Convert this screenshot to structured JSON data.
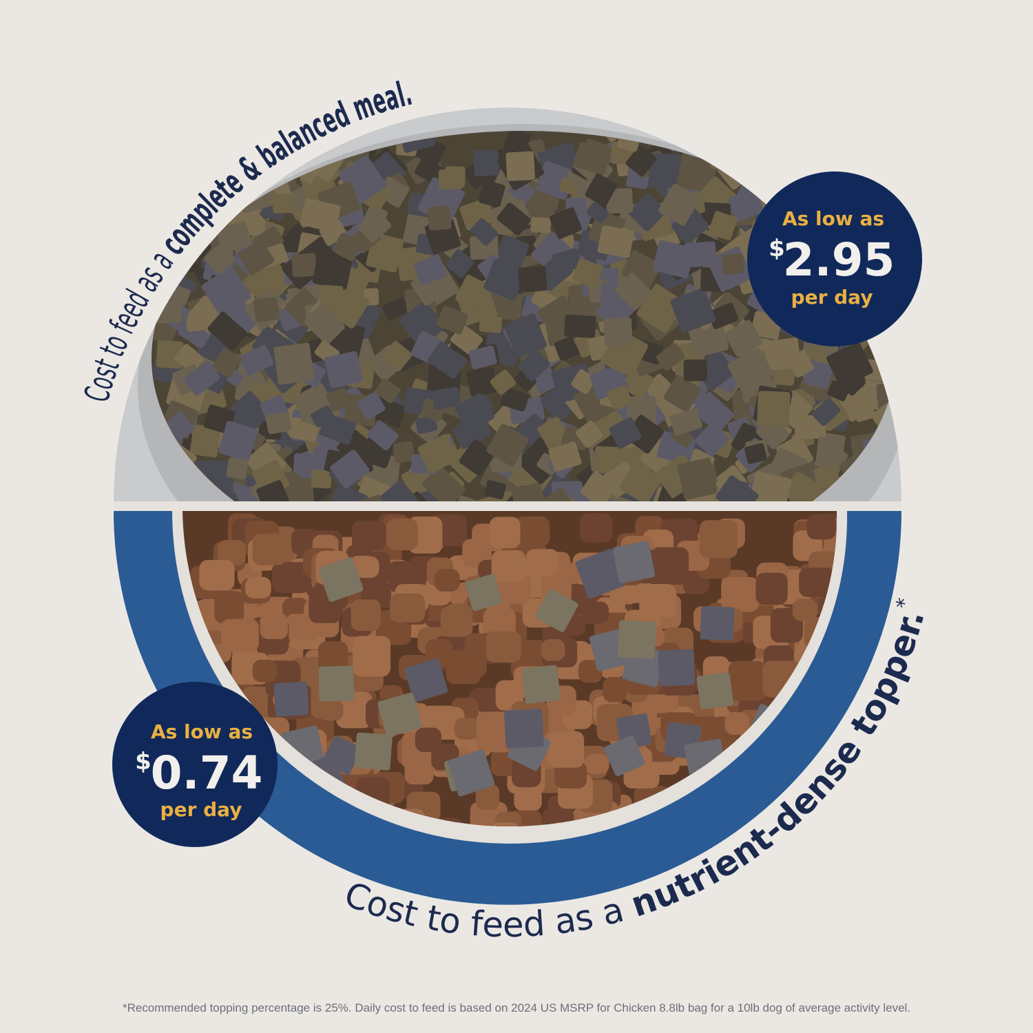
{
  "top_caption": {
    "regular": "Cost to feed as a ",
    "bold": "complete & balanced meal."
  },
  "bottom_caption": {
    "regular": "Cost to feed as a ",
    "bold": "nutrient-dense topper.",
    "mark": "*"
  },
  "badge_meal": {
    "line1": "As low as",
    "currency": "$",
    "price": "2.95",
    "line3": "per day"
  },
  "badge_topper": {
    "line1": "As low as",
    "currency": "$",
    "price": "0.74",
    "line3": "per day"
  },
  "footnote": "*Recommended topping percentage is 25%. Daily cost to feed is based on 2024 US MSRP for Chicken 8.8lb bag for a 10lb dog of average activity level.",
  "colors": {
    "background": "#ebe8e4",
    "navy": "#11295a",
    "gold": "#e9b042",
    "bowl_blue": "#2a5b94",
    "text": "#1c2a4e"
  }
}
